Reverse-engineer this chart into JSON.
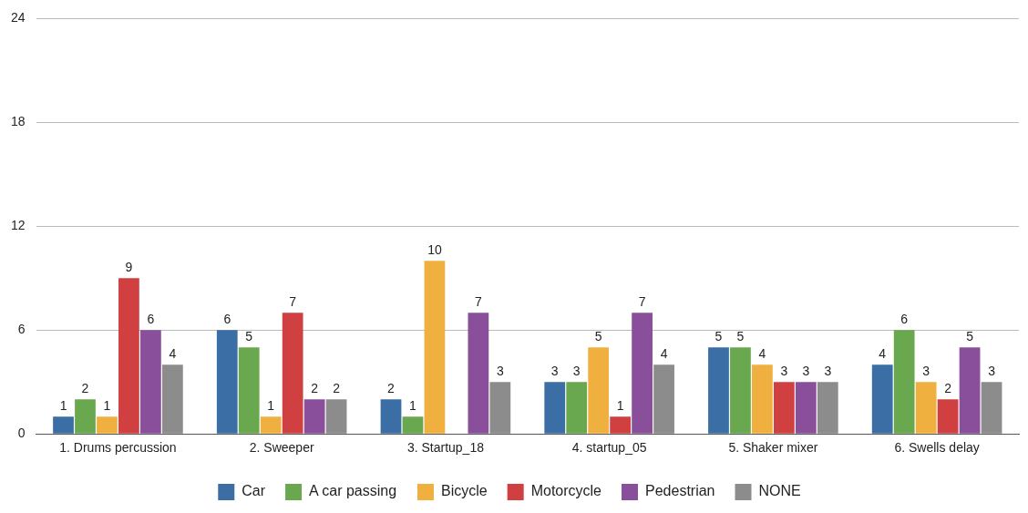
{
  "chart_data": {
    "type": "bar",
    "categories": [
      "1. Drums percussion",
      "2. Sweeper",
      "3. Startup_18",
      "4. startup_05",
      "5. Shaker mixer",
      "6. Swells delay"
    ],
    "series": [
      {
        "name": "Car",
        "color": "#3b6ea5",
        "values": [
          1,
          6,
          2,
          3,
          5,
          4
        ]
      },
      {
        "name": "A car passing",
        "color": "#6aa84f",
        "values": [
          2,
          5,
          1,
          3,
          5,
          6
        ]
      },
      {
        "name": "Bicycle",
        "color": "#f0b040",
        "values": [
          1,
          1,
          10,
          5,
          4,
          3
        ]
      },
      {
        "name": "Motorcycle",
        "color": "#d04040",
        "values": [
          9,
          7,
          null,
          1,
          3,
          2
        ]
      },
      {
        "name": "Pedestrian",
        "color": "#8a4f9a",
        "values": [
          6,
          2,
          7,
          7,
          3,
          5
        ]
      },
      {
        "name": "NONE",
        "color": "#8c8c8c",
        "values": [
          4,
          2,
          3,
          4,
          3,
          3
        ]
      }
    ],
    "ylim": [
      0,
      24
    ],
    "yticks": [
      0,
      6,
      12,
      18,
      24
    ],
    "grid": "y",
    "legend": "bottom",
    "data_labels": true
  }
}
